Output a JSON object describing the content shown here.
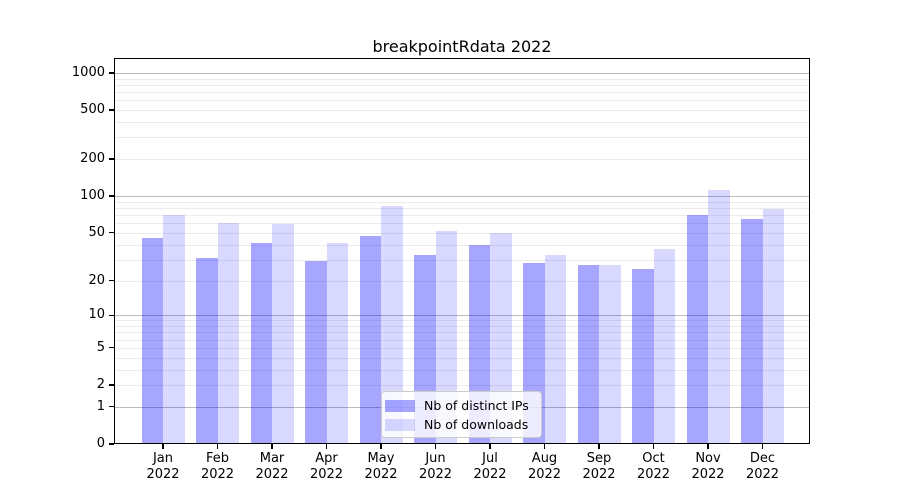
{
  "title": "breakpointRdata 2022",
  "chart_data": {
    "type": "bar",
    "title": "breakpointRdata 2022",
    "scale": "log1p",
    "categories": [
      "Jan",
      "Feb",
      "Mar",
      "Apr",
      "May",
      "Jun",
      "Jul",
      "Aug",
      "Sep",
      "Oct",
      "Nov",
      "Dec"
    ],
    "year_label": "2022",
    "series": [
      {
        "name": "Nb of distinct IPs",
        "color": "rgba(0,0,255,0.35)",
        "values": [
          45,
          31,
          41,
          29,
          47,
          33,
          40,
          28,
          27,
          25,
          70,
          65
        ]
      },
      {
        "name": "Nb of downloads",
        "color": "rgba(0,0,255,0.15)",
        "values": [
          70,
          60,
          59,
          41,
          83,
          52,
          50,
          33,
          27,
          37,
          112,
          78
        ]
      }
    ],
    "y_ticks": [
      0,
      1,
      2,
      5,
      10,
      20,
      50,
      100,
      200,
      500,
      1000
    ],
    "ylim": [
      0,
      1320
    ],
    "grid": {
      "major_at": [
        1,
        10,
        100,
        1000
      ],
      "minor_color": "#ececec",
      "major_color": "#bcbcbc"
    },
    "legend": {
      "position": "lower-center"
    },
    "xlabel": "",
    "ylabel": ""
  }
}
